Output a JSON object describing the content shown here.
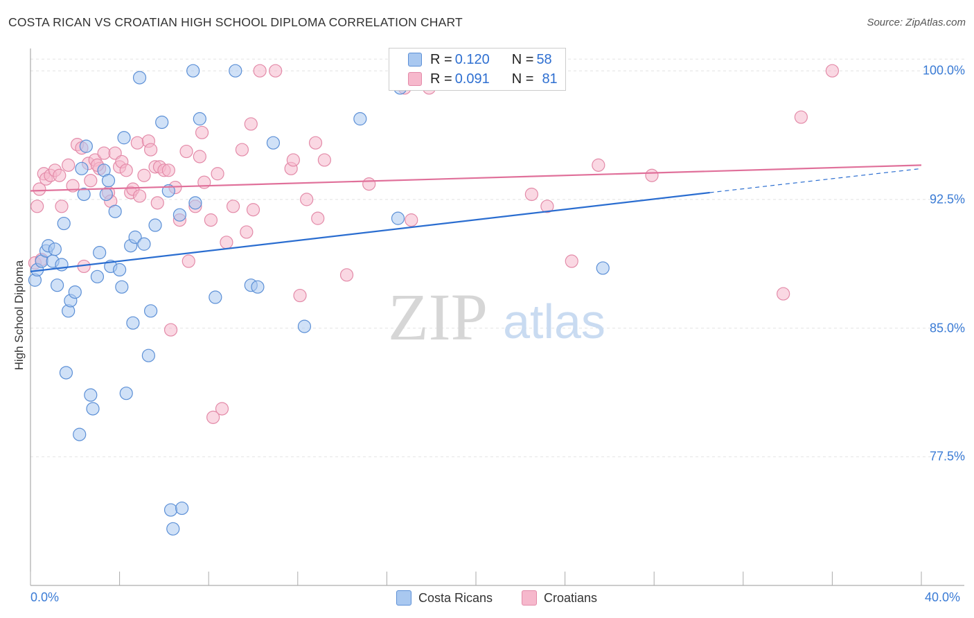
{
  "title": "COSTA RICAN VS CROATIAN HIGH SCHOOL DIPLOMA CORRELATION CHART",
  "source": "Source: ZipAtlas.com",
  "watermark": {
    "zip": "ZIP",
    "atlas": "atlas"
  },
  "legend": {
    "rows": [
      {
        "r_label": "R = ",
        "r_value": "0.120",
        "n_label": "N = ",
        "n_value": "58"
      },
      {
        "r_label": "R = ",
        "r_value": "0.091",
        "n_label": "N = ",
        "n_value": "81"
      }
    ]
  },
  "bottom_legend": {
    "series1": "Costa Ricans",
    "series2": "Croatians"
  },
  "colors": {
    "blue_fill": "#a9c8f0",
    "blue_stroke": "#5b8fd6",
    "blue_line": "#2a6dd0",
    "pink_fill": "#f6b8cc",
    "pink_stroke": "#e38aa8",
    "pink_line": "#e0709a",
    "tick_text": "#3a7bd5",
    "grid": "#e2e2e2"
  },
  "chart_data": {
    "type": "scatter",
    "title": "COSTA RICAN VS CROATIAN HIGH SCHOOL DIPLOMA CORRELATION CHART",
    "xlabel": "",
    "ylabel": "High School Diploma",
    "xlim": [
      0,
      40
    ],
    "ylim": [
      70.0,
      101.3
    ],
    "x_tick_labels": [
      "0.0%",
      "40.0%"
    ],
    "y_ticks": [
      77.5,
      85.0,
      92.5,
      100.0
    ],
    "y_tick_labels": [
      "77.5%",
      "85.0%",
      "92.5%",
      "100.0%"
    ],
    "grid": true,
    "legend_position": "top-center",
    "series": [
      {
        "name": "Costa Ricans",
        "color": "#a9c8f0",
        "trend": {
          "x": [
            0,
            30.5
          ],
          "y": [
            88.3,
            92.9
          ],
          "dashed_to": [
            40,
            94.3
          ]
        },
        "points": [
          [
            0.2,
            87.8
          ],
          [
            0.3,
            88.4
          ],
          [
            0.5,
            88.9
          ],
          [
            0.7,
            89.5
          ],
          [
            0.8,
            89.8
          ],
          [
            1.0,
            88.9
          ],
          [
            1.1,
            89.6
          ],
          [
            1.2,
            87.5
          ],
          [
            1.4,
            88.7
          ],
          [
            1.5,
            91.1
          ],
          [
            1.7,
            86.0
          ],
          [
            1.8,
            86.6
          ],
          [
            2.0,
            87.1
          ],
          [
            2.2,
            78.8
          ],
          [
            2.3,
            94.3
          ],
          [
            2.4,
            92.8
          ],
          [
            2.5,
            95.6
          ],
          [
            1.6,
            82.4
          ],
          [
            2.7,
            81.1
          ],
          [
            2.8,
            80.3
          ],
          [
            3.0,
            88.0
          ],
          [
            3.1,
            89.4
          ],
          [
            3.3,
            94.2
          ],
          [
            3.4,
            92.8
          ],
          [
            3.5,
            93.6
          ],
          [
            3.6,
            88.6
          ],
          [
            3.8,
            91.8
          ],
          [
            4.0,
            88.4
          ],
          [
            4.1,
            87.4
          ],
          [
            4.2,
            96.1
          ],
          [
            4.3,
            81.2
          ],
          [
            4.5,
            89.8
          ],
          [
            4.6,
            85.3
          ],
          [
            4.7,
            90.3
          ],
          [
            4.9,
            99.6
          ],
          [
            5.1,
            89.9
          ],
          [
            5.4,
            86.0
          ],
          [
            5.3,
            83.4
          ],
          [
            5.6,
            91.0
          ],
          [
            5.9,
            97.0
          ],
          [
            6.2,
            93.0
          ],
          [
            6.3,
            74.4
          ],
          [
            6.4,
            73.3
          ],
          [
            6.7,
            91.6
          ],
          [
            6.8,
            74.5
          ],
          [
            7.3,
            100.0
          ],
          [
            7.4,
            92.3
          ],
          [
            7.6,
            97.2
          ],
          [
            8.3,
            86.8
          ],
          [
            9.2,
            100.0
          ],
          [
            9.9,
            87.5
          ],
          [
            10.2,
            87.4
          ],
          [
            10.9,
            95.8
          ],
          [
            12.3,
            85.1
          ],
          [
            14.8,
            97.2
          ],
          [
            16.5,
            91.4
          ],
          [
            16.6,
            99.0
          ],
          [
            25.7,
            88.5
          ]
        ]
      },
      {
        "name": "Croatians",
        "color": "#f6b8cc",
        "trend": {
          "x": [
            0,
            40
          ],
          "y": [
            93.0,
            94.5
          ]
        },
        "points": [
          [
            0.2,
            88.8
          ],
          [
            0.3,
            92.1
          ],
          [
            0.4,
            93.1
          ],
          [
            0.6,
            94.0
          ],
          [
            0.7,
            93.7
          ],
          [
            0.9,
            93.9
          ],
          [
            1.1,
            94.2
          ],
          [
            1.3,
            93.9
          ],
          [
            1.4,
            92.1
          ],
          [
            1.7,
            94.5
          ],
          [
            1.9,
            93.3
          ],
          [
            2.1,
            95.7
          ],
          [
            2.3,
            95.5
          ],
          [
            2.4,
            88.6
          ],
          [
            2.6,
            94.6
          ],
          [
            2.7,
            93.6
          ],
          [
            2.9,
            94.8
          ],
          [
            3.1,
            94.3
          ],
          [
            3.3,
            95.2
          ],
          [
            3.5,
            92.9
          ],
          [
            3.6,
            92.4
          ],
          [
            3.8,
            95.2
          ],
          [
            4.0,
            94.4
          ],
          [
            4.1,
            94.7
          ],
          [
            4.3,
            94.2
          ],
          [
            4.5,
            92.9
          ],
          [
            4.6,
            93.1
          ],
          [
            4.8,
            95.8
          ],
          [
            4.9,
            92.7
          ],
          [
            5.1,
            93.9
          ],
          [
            5.3,
            95.9
          ],
          [
            5.4,
            95.4
          ],
          [
            5.6,
            94.4
          ],
          [
            5.7,
            92.3
          ],
          [
            5.8,
            94.4
          ],
          [
            6.0,
            94.2
          ],
          [
            6.2,
            94.2
          ],
          [
            6.3,
            84.9
          ],
          [
            6.5,
            93.2
          ],
          [
            6.7,
            91.3
          ],
          [
            7.0,
            95.3
          ],
          [
            7.1,
            88.9
          ],
          [
            7.4,
            92.1
          ],
          [
            7.6,
            95.0
          ],
          [
            7.7,
            96.4
          ],
          [
            7.8,
            93.5
          ],
          [
            8.1,
            91.3
          ],
          [
            8.4,
            94.0
          ],
          [
            8.6,
            80.3
          ],
          [
            8.2,
            79.8
          ],
          [
            8.8,
            90.0
          ],
          [
            9.1,
            92.1
          ],
          [
            9.5,
            95.4
          ],
          [
            9.7,
            90.6
          ],
          [
            9.9,
            96.9
          ],
          [
            10.0,
            91.9
          ],
          [
            10.3,
            100.0
          ],
          [
            11.0,
            100.0
          ],
          [
            11.7,
            94.3
          ],
          [
            11.8,
            94.8
          ],
          [
            12.1,
            86.9
          ],
          [
            12.4,
            92.5
          ],
          [
            12.8,
            95.8
          ],
          [
            12.9,
            91.4
          ],
          [
            13.2,
            94.8
          ],
          [
            14.2,
            88.1
          ],
          [
            15.2,
            93.4
          ],
          [
            17.1,
            91.3
          ],
          [
            17.9,
            99.0
          ],
          [
            18.0,
            100.0
          ],
          [
            22.5,
            92.8
          ],
          [
            23.2,
            92.1
          ],
          [
            24.3,
            88.9
          ],
          [
            25.5,
            94.5
          ],
          [
            27.9,
            93.9
          ],
          [
            33.8,
            87.0
          ],
          [
            34.6,
            97.3
          ],
          [
            36.0,
            100.0
          ],
          [
            16.8,
            99.0
          ],
          [
            3.0,
            94.5
          ],
          [
            0.5,
            89.0
          ]
        ]
      }
    ]
  }
}
